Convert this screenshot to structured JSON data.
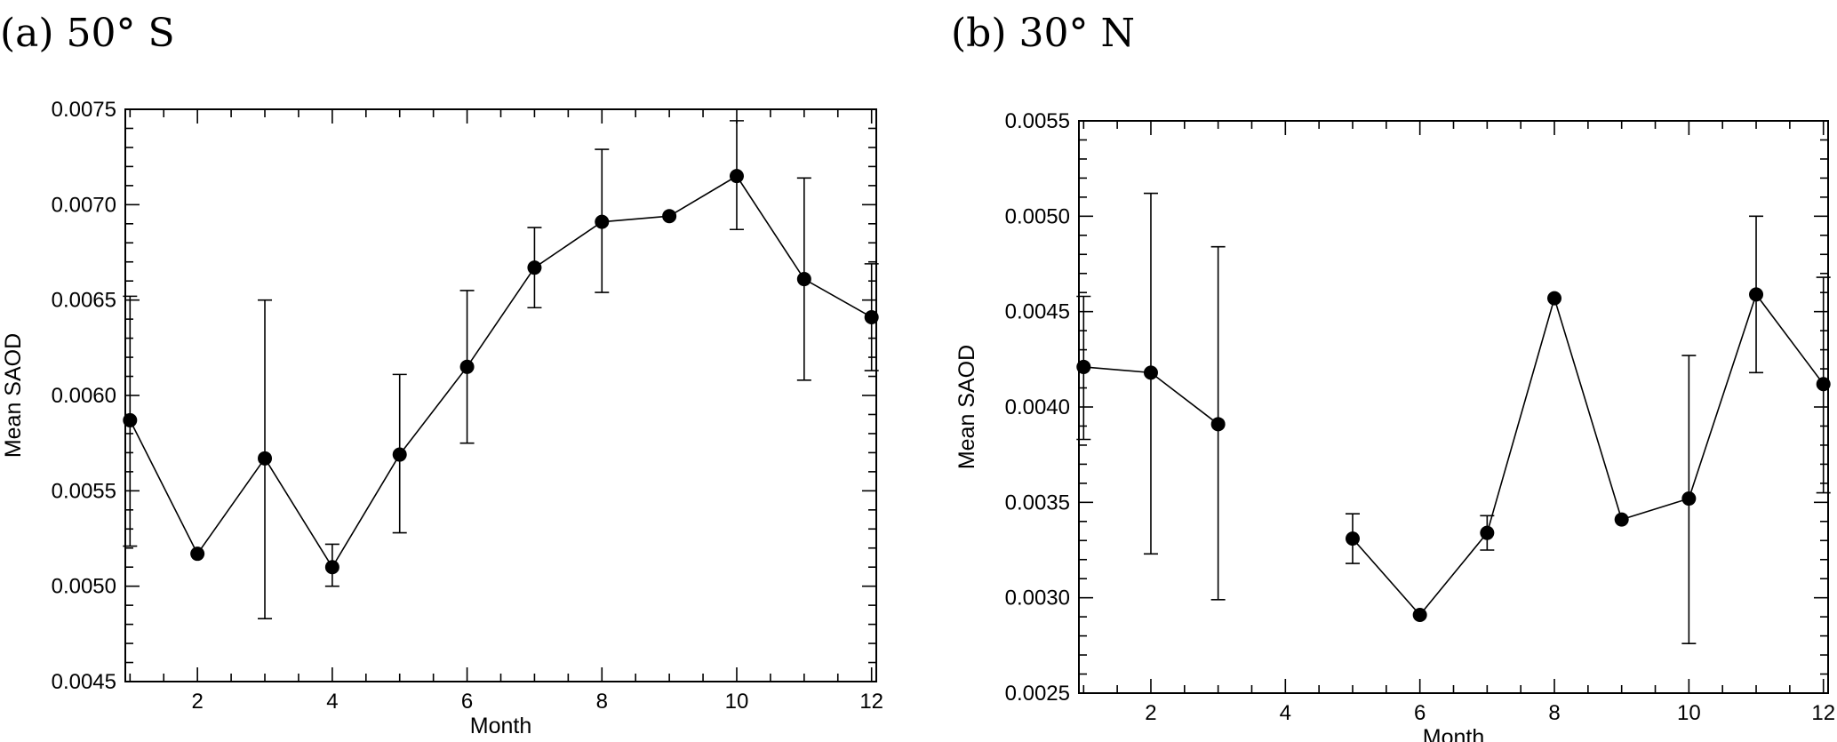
{
  "chart_data": [
    {
      "type": "line",
      "title": "(a) 50° S",
      "xlabel": "Month",
      "ylabel": "Mean SAOD",
      "xlim": [
        0.93,
        12.07
      ],
      "ylim": [
        0.0045,
        0.0075
      ],
      "xticks": [
        2,
        4,
        6,
        8,
        10,
        12
      ],
      "xtick_labels": [
        "2",
        "4",
        "6",
        "8",
        "10",
        "12"
      ],
      "yticks": [
        0.0045,
        0.005,
        0.0055,
        0.006,
        0.0065,
        0.007,
        0.0075
      ],
      "ytick_labels": [
        "0.0045",
        "0.0050",
        "0.0055",
        "0.0060",
        "0.0065",
        "0.0070",
        "0.0075"
      ],
      "grid": false,
      "series": [
        {
          "name": "Mean SAOD",
          "x": [
            1,
            2,
            3,
            4,
            5,
            6,
            7,
            8,
            9,
            10,
            11,
            12
          ],
          "y": [
            0.00587,
            0.00517,
            0.00567,
            0.0051,
            0.00569,
            0.00615,
            0.00667,
            0.00691,
            0.00694,
            0.00715,
            0.00661,
            0.00641
          ],
          "err_low": [
            0.00521,
            null,
            0.00483,
            0.005,
            0.00528,
            0.00575,
            0.00646,
            0.00654,
            null,
            0.00687,
            0.00608,
            0.00613
          ],
          "err_high": [
            0.00652,
            null,
            0.0065,
            0.00522,
            0.00611,
            0.00655,
            0.00688,
            0.00729,
            null,
            0.00744,
            0.00714,
            0.00669
          ]
        }
      ]
    },
    {
      "type": "line",
      "title": "(b) 30° N",
      "xlabel": "Month",
      "ylabel": "Mean SAOD",
      "xlim": [
        0.93,
        12.07
      ],
      "ylim": [
        0.0025,
        0.0055
      ],
      "xticks": [
        2,
        4,
        6,
        8,
        10,
        12
      ],
      "xtick_labels": [
        "2",
        "4",
        "6",
        "8",
        "10",
        "12"
      ],
      "yticks": [
        0.0025,
        0.003,
        0.0035,
        0.004,
        0.0045,
        0.005,
        0.0055
      ],
      "ytick_labels": [
        "0.0025",
        "0.0030",
        "0.0035",
        "0.0040",
        "0.0045",
        "0.0050",
        "0.0055"
      ],
      "grid": false,
      "series": [
        {
          "name": "Mean SAOD",
          "x": [
            1,
            2,
            3,
            4,
            5,
            6,
            7,
            8,
            9,
            10,
            11,
            12
          ],
          "y": [
            0.00421,
            0.00418,
            0.00391,
            null,
            0.00331,
            0.00291,
            0.00334,
            0.00457,
            0.00341,
            0.00352,
            0.00459,
            0.00412
          ],
          "err_low": [
            0.00383,
            0.00323,
            0.00299,
            null,
            0.00318,
            null,
            0.00325,
            null,
            null,
            0.00276,
            0.00418,
            0.00355
          ],
          "err_high": [
            0.00458,
            0.00512,
            0.00484,
            null,
            0.00344,
            null,
            0.00343,
            null,
            null,
            0.00427,
            0.005,
            0.00468
          ]
        }
      ]
    }
  ]
}
